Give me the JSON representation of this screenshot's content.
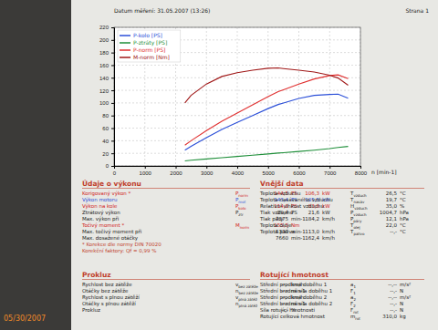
{
  "photo_date": "05/30/2007",
  "header": {
    "date": "Datum měření: 31.05.2007 (13:26)",
    "page": "Strana 1"
  },
  "chart_data": {
    "type": "line",
    "x_label": "n [min-1]",
    "x": [
      2300,
      2500,
      3000,
      3500,
      4000,
      4500,
      5000,
      5330,
      5500,
      6000,
      6500,
      7000,
      7275,
      7600
    ],
    "series": [
      {
        "name": "P-kolo [PS]",
        "color": "#2b4fd8",
        "values": [
          25,
          31,
          45,
          58,
          69,
          80,
          91,
          97.5,
          100,
          107,
          112,
          113.5,
          114,
          107.5
        ]
      },
      {
        "name": "P-ztráty [PS]",
        "color": "#1f8f3a",
        "values": [
          8,
          9,
          11,
          13,
          15,
          17,
          19,
          20.5,
          21,
          23,
          25,
          27.5,
          29.4,
          31
        ]
      },
      {
        "name": "P-norm [PS]",
        "color": "#e03030",
        "values": [
          33,
          40,
          56,
          71,
          84,
          97,
          110,
          118,
          121,
          130,
          138,
          143.5,
          144.5,
          138.5
        ]
      },
      {
        "name": "M-norm [Nm]",
        "color": "#a01818",
        "values": [
          100,
          112,
          130,
          142,
          148,
          152,
          155,
          155.5,
          154.5,
          152,
          149,
          144,
          139.5,
          128
        ]
      }
    ],
    "xlim": [
      0,
      8000
    ],
    "xticks": [
      0,
      1000,
      2000,
      3000,
      4000,
      5000,
      6000,
      7000,
      8000
    ],
    "ylim": [
      0,
      220
    ],
    "yticks": [
      0,
      20,
      40,
      60,
      80,
      100,
      120,
      140,
      160,
      180,
      200,
      220
    ],
    "grid": true,
    "legend": "top-left"
  },
  "performance": {
    "title": "Údaje o výkonu",
    "rows": [
      {
        "label": "Korigovaný výkon *",
        "symbol": "P",
        "sub": "norm",
        "value": "144,5",
        "unit": "PS",
        "value2": "106,3",
        "unit2": "kW",
        "color": "#d02020"
      },
      {
        "label": "Výkon motoru",
        "symbol": "P",
        "sub": "mot",
        "value": "143,4",
        "unit": "PS",
        "value2": "105,5",
        "unit2": "kW",
        "color": "#2b4fd8"
      },
      {
        "label": "Výkon na kole",
        "symbol": "P",
        "sub": "kolo",
        "value": "114,0",
        "unit": "PS",
        "value2": "83,8",
        "unit2": "kW",
        "color": "#d02020"
      },
      {
        "label": "Ztrátový výkon",
        "symbol": "P",
        "sub": "ztr",
        "value": "29,4",
        "unit": "PS",
        "value2": "21,6",
        "unit2": "kW"
      },
      {
        "label": "Max. výkon při",
        "value": "7275",
        "unit": "min-1",
        "value2": "184,2",
        "unit2": "km/h"
      },
      {
        "label": "Točivý moment *",
        "symbol": "M",
        "sub": "norm",
        "value": "155,5",
        "unit": "Nm",
        "color": "#d02020"
      },
      {
        "label": "Max. točivý moment při",
        "value": "5330",
        "unit": "min-1",
        "value2": "113,0",
        "unit2": "km/h"
      },
      {
        "label": "Max. dosažené otáčky",
        "value": "7660",
        "unit": "min-1",
        "value2": "162,4",
        "unit2": "km/h"
      }
    ],
    "notes": [
      "* Korekce dle normy DIN 70020",
      "Korekční faktory: Qf = 0,99 %"
    ]
  },
  "external": {
    "title": "Vnější data",
    "rows": [
      {
        "label": "Teplota vzduchu",
        "symbol": "T",
        "sub": "vzduch",
        "value": "26,5",
        "unit": "°C"
      },
      {
        "label": "Teplota nasávaného vzduchu",
        "symbol": "T",
        "sub": "nasáv",
        "value": "19,7",
        "unit": "°C"
      },
      {
        "label": "Relativní vlhkost vzduchu",
        "symbol": "H",
        "sub": "vzduch",
        "value": "35,0",
        "unit": "%"
      },
      {
        "label": "Tlak vzduchu",
        "symbol": "P",
        "sub": "vzduch",
        "value": "1004,7",
        "unit": "hPa"
      },
      {
        "label": "Tlak páry",
        "symbol": "P",
        "sub": "páry",
        "value": "12,1",
        "unit": "hPa"
      },
      {
        "label": "Teplota oleje",
        "symbol": "T",
        "sub": "olej",
        "value": "22,0",
        "unit": "°C"
      },
      {
        "label": "Teplota paliva",
        "symbol": "T",
        "sub": "palivo",
        "value": "--,-",
        "unit": "°C"
      }
    ]
  },
  "slip": {
    "title": "Prokluz",
    "rows": [
      {
        "label": "Rychlost bez zátěže",
        "symbol": "v",
        "sub": "bez zátěže",
        "value": "--,-",
        "unit": "km/h"
      },
      {
        "label": "Otáčky bez zátěže",
        "symbol": "n",
        "sub": "bez zátěže",
        "value": "----",
        "unit": "min-1"
      },
      {
        "label": "Rychlost s plnou zátěží",
        "symbol": "v",
        "sub": "plná zátěž",
        "value": "--,-",
        "unit": "km/h"
      },
      {
        "label": "Otáčky s plnou zátěží",
        "symbol": "n",
        "sub": "plná zátěž",
        "value": "----",
        "unit": "min-1"
      },
      {
        "label": "Prokluz",
        "value": "--,-",
        "unit": "%"
      }
    ]
  },
  "rotating": {
    "title": "Rotující hmotnost",
    "rows": [
      {
        "label": "Střední prodleva doběhu 1",
        "symbol": "a",
        "sub": "1",
        "value": "--,--",
        "unit": "m/s²"
      },
      {
        "label": "Střední brzdná síla doběhu 1",
        "symbol": "F",
        "sub": "1",
        "value": "--,-",
        "unit": "N"
      },
      {
        "label": "Střední prodleva doběhu 2",
        "symbol": "a",
        "sub": "2",
        "value": "--,--",
        "unit": "m/s²"
      },
      {
        "label": "Střední brzdná síla doběhu 2",
        "symbol": "F",
        "sub": "2",
        "value": "--,-",
        "unit": "N"
      },
      {
        "label": "Síla rotující hmotnosti",
        "symbol": "F",
        "sub": "rot",
        "value": "--,-",
        "unit": "N"
      },
      {
        "label": "Rotující celková hmotnost",
        "symbol": "m",
        "sub": "rot",
        "value": "310,0",
        "unit": "kg"
      }
    ]
  }
}
